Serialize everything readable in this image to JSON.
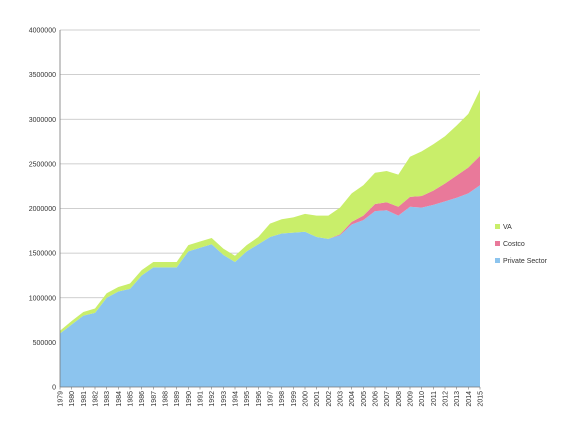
{
  "chart_data": {
    "type": "area",
    "stacked": true,
    "title": "",
    "xlabel": "",
    "ylabel": "",
    "ylim": [
      0,
      4000000
    ],
    "yticks": [
      0,
      500000,
      1000000,
      1500000,
      2000000,
      2500000,
      3000000,
      3500000,
      4000000
    ],
    "ytick_labels": [
      "0",
      "500000",
      "1000000",
      "1500000",
      "2000000",
      "2500000",
      "3000000",
      "3500000",
      "4000000"
    ],
    "grid": "horizontal",
    "legend": "right",
    "x": [
      1979,
      1980,
      1981,
      1982,
      1983,
      1984,
      1985,
      1986,
      1987,
      1988,
      1989,
      1990,
      1991,
      1992,
      1993,
      1994,
      1995,
      1996,
      1997,
      1998,
      1999,
      2000,
      2001,
      2002,
      2003,
      2004,
      2005,
      2006,
      2007,
      2008,
      2009,
      2010,
      2011,
      2012,
      2013,
      2014,
      2015
    ],
    "series": [
      {
        "name": "Private Sector",
        "color": "#8cc4ee",
        "values": [
          600000,
          700000,
          800000,
          830000,
          1000000,
          1070000,
          1100000,
          1250000,
          1340000,
          1340000,
          1340000,
          1520000,
          1560000,
          1600000,
          1480000,
          1400000,
          1520000,
          1600000,
          1680000,
          1720000,
          1730000,
          1740000,
          1680000,
          1660000,
          1700000,
          1820000,
          1870000,
          1970000,
          1980000,
          1920000,
          2020000,
          2010000,
          2040000,
          2080000,
          2120000,
          2170000,
          2260000
        ]
      },
      {
        "name": "Costco",
        "color": "#e9799a",
        "values": [
          0,
          0,
          0,
          0,
          0,
          0,
          0,
          0,
          0,
          0,
          0,
          0,
          0,
          0,
          0,
          0,
          0,
          0,
          0,
          0,
          0,
          0,
          0,
          0,
          10000,
          30000,
          50000,
          80000,
          90000,
          100000,
          110000,
          130000,
          160000,
          200000,
          250000,
          290000,
          330000
        ]
      },
      {
        "name": "VA",
        "color": "#c9ee6a",
        "values": [
          30000,
          40000,
          40000,
          50000,
          50000,
          50000,
          60000,
          60000,
          60000,
          60000,
          60000,
          70000,
          70000,
          70000,
          70000,
          70000,
          70000,
          80000,
          150000,
          160000,
          170000,
          200000,
          240000,
          260000,
          300000,
          320000,
          340000,
          350000,
          350000,
          360000,
          450000,
          500000,
          520000,
          530000,
          560000,
          600000,
          740000
        ]
      }
    ],
    "x_tick_labels": [
      "1979",
      "1980",
      "1981",
      "1982",
      "1983",
      "1984",
      "1985",
      "1986",
      "1987",
      "1988",
      "1989",
      "1990",
      "1991",
      "1992",
      "1993",
      "1994",
      "1995",
      "1996",
      "1997",
      "1998",
      "1999",
      "2000",
      "2001",
      "2002",
      "2003",
      "2004",
      "2005",
      "2006",
      "2007",
      "2008",
      "2009",
      "2010",
      "2011",
      "2012",
      "2013",
      "2014",
      "2015"
    ],
    "legend_order": [
      "VA",
      "Costco",
      "Private Sector"
    ],
    "colors": {
      "grid": "#bfbfbf",
      "axis": "#777777"
    }
  }
}
